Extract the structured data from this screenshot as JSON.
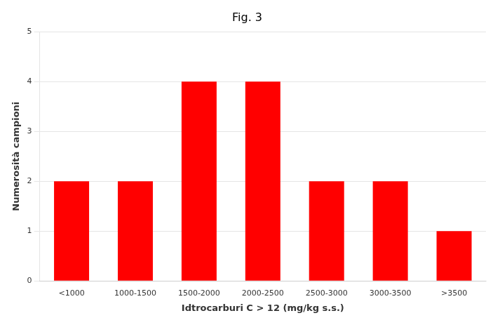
{
  "chart_data": {
    "type": "bar",
    "title": "Fig. 3",
    "categories": [
      "<1000",
      "1000-1500",
      "1500-2000",
      "2000-2500",
      "2500-3000",
      "3000-3500",
      ">3500"
    ],
    "values": [
      2,
      2,
      4,
      4,
      2,
      2,
      1
    ],
    "color": "#ff0000",
    "xlabel": "Idtrocarburi C > 12 (mg/kg s.s.)",
    "ylabel": "Numerosità campioni",
    "ylim": [
      0,
      5
    ],
    "yticks": [
      0,
      1,
      2,
      3,
      4,
      5
    ],
    "grid": true
  }
}
